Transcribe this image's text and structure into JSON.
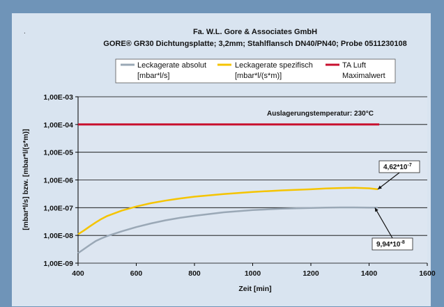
{
  "chart_data": {
    "type": "line",
    "title": "Fa. W.L. Gore & Associates GmbH",
    "subtitle": "GORE® GR30 Dichtungsplatte; 3,2mm; Stahlflansch DN40/PN40; Probe 0511230108",
    "corner_mark": ".",
    "xlabel": "Zeit [min]",
    "ylabel": "[mbar*l/s] bzw. [mbar*l/(s*m)]",
    "xlim": [
      400,
      1600
    ],
    "ylim": [
      1e-09,
      0.001
    ],
    "yscale": "log",
    "x_ticks": [
      400,
      600,
      800,
      1000,
      1200,
      1400,
      1600
    ],
    "x_tick_labels": [
      "400",
      "600",
      "800",
      "1000",
      "1200",
      "1400",
      "1600"
    ],
    "y_ticks": [
      1e-09,
      1e-08,
      1e-07,
      1e-06,
      1e-05,
      0.0001,
      0.001
    ],
    "y_tick_labels": [
      "1,00E-09",
      "1,00E-08",
      "1,00E-07",
      "1,00E-06",
      "1,00E-05",
      "1,00E-04",
      "1,00E-03"
    ],
    "grid": "horizontal",
    "legend_position": "top",
    "series": [
      {
        "name": "Leckagerate absolut [mbar*l/s]",
        "legend_line1": "Leckagerate absolut",
        "legend_line2": "[mbar*l/s]",
        "color": "#9aa8b6",
        "x": [
          400,
          420,
          440,
          460,
          480,
          500,
          550,
          600,
          650,
          700,
          750,
          800,
          900,
          1000,
          1100,
          1200,
          1250,
          1300,
          1350,
          1400,
          1430
        ],
        "y": [
          2.3e-09,
          3.2e-09,
          4.5e-09,
          6.2e-09,
          7.8e-09,
          9.5e-09,
          1.4e-08,
          2e-08,
          2.7e-08,
          3.5e-08,
          4.3e-08,
          5.1e-08,
          6.8e-08,
          8.2e-08,
          9.2e-08,
          9.8e-08,
          1e-07,
          1.02e-07,
          1.02e-07,
          1.01e-07,
          1e-07
        ]
      },
      {
        "name": "Leckagerate spezifisch [mbar*l/(s*m)]",
        "legend_line1": "Leckagerate spezifisch",
        "legend_line2": "[mbar*l/(s*m)]",
        "color": "#f5c400",
        "x": [
          400,
          420,
          440,
          460,
          480,
          500,
          550,
          600,
          650,
          700,
          750,
          800,
          900,
          1000,
          1100,
          1200,
          1250,
          1300,
          1350,
          1400,
          1430
        ],
        "y": [
          1.1e-08,
          1.5e-08,
          2.1e-08,
          2.9e-08,
          3.9e-08,
          5e-08,
          7.8e-08,
          1.1e-07,
          1.45e-07,
          1.8e-07,
          2.15e-07,
          2.5e-07,
          3.1e-07,
          3.7e-07,
          4.2e-07,
          4.6e-07,
          4.9e-07,
          5.1e-07,
          5.2e-07,
          5e-07,
          4.62e-07
        ]
      },
      {
        "name": "TA Luft Maximalwert",
        "legend_line1": "TA Luft",
        "legend_line2": "Maximalwert",
        "color": "#c8102e",
        "x": [
          400,
          1435
        ],
        "y": [
          0.0001,
          0.0001
        ]
      }
    ],
    "annotations": [
      {
        "text": "Auslagerungstemperatur: 230°C"
      },
      {
        "mantissa": "4,62*10",
        "exp": "-7",
        "target_x": 1430,
        "target_y": 4.62e-07
      },
      {
        "mantissa": "9,94*10",
        "exp": "-8",
        "target_x": 1420,
        "target_y": 9.94e-08
      }
    ]
  }
}
